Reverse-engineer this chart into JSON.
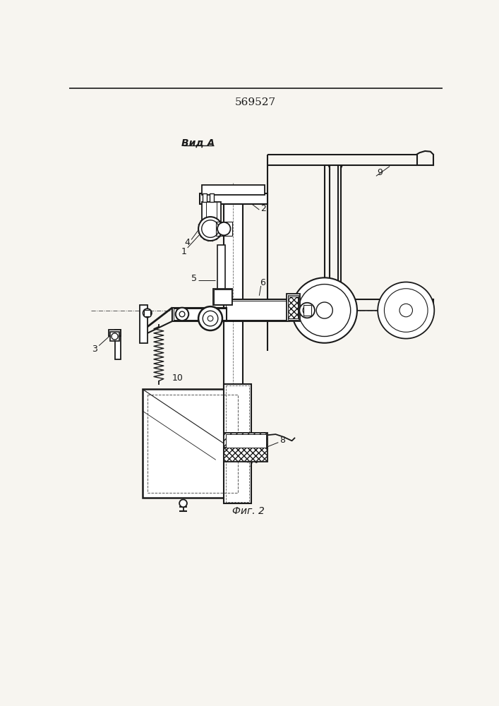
{
  "title": "569527",
  "label_vid_a": "Вид А",
  "label_fig2": "Фиг. 2",
  "bg_color": "#f0ede8",
  "line_color": "#1a1a1a",
  "paper_color": "#f7f5f0"
}
